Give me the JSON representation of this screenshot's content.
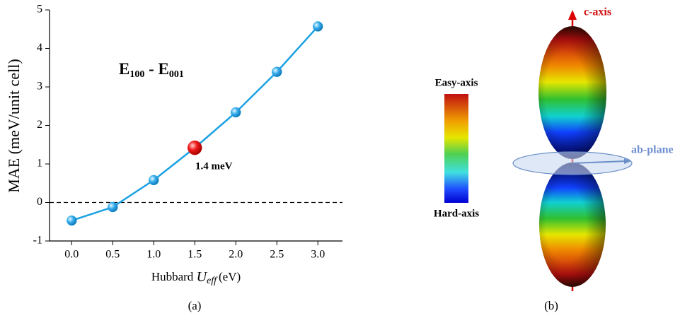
{
  "chart_data": {
    "type": "line",
    "ylabel": "MAE (meV/unit cell)",
    "xlabel": {
      "prefix": "Hubbard ",
      "var": "U",
      "sub": "eff",
      "suffix": "(eV)"
    },
    "annotation": {
      "base": "E",
      "sub1": "100",
      "mid": " - E",
      "sub2": "001"
    },
    "point_label": "1.4 meV",
    "caption": "(a)",
    "x": [
      0,
      0.5,
      1.0,
      1.5,
      2.0,
      2.5,
      3.0
    ],
    "values": [
      -0.47,
      -0.12,
      0.58,
      1.42,
      2.34,
      3.39,
      4.57
    ],
    "color": "#1ba1e2",
    "highlight_index": 3,
    "highlight_color": "#e01010",
    "hline": 0,
    "xlim": [
      -0.27,
      3.3
    ],
    "ylim": [
      -1,
      5
    ],
    "xticks": [
      {
        "value": 0,
        "label": "0.0"
      },
      {
        "value": 0.5,
        "label": "0.5"
      },
      {
        "value": 1.0,
        "label": "1.0"
      },
      {
        "value": 1.5,
        "label": "1.5"
      },
      {
        "value": 2.0,
        "label": "2.0"
      },
      {
        "value": 2.5,
        "label": "2.5"
      },
      {
        "value": 3.0,
        "label": "3.0"
      }
    ],
    "yticks": [
      -1,
      0,
      1,
      2,
      3,
      4,
      5
    ]
  },
  "diagram": {
    "colorbar_top": "Easy-axis",
    "colorbar_bottom": "Hard-axis",
    "c_axis": "c-axis",
    "ab_plane": "ab-plane",
    "caption": "(b)"
  }
}
